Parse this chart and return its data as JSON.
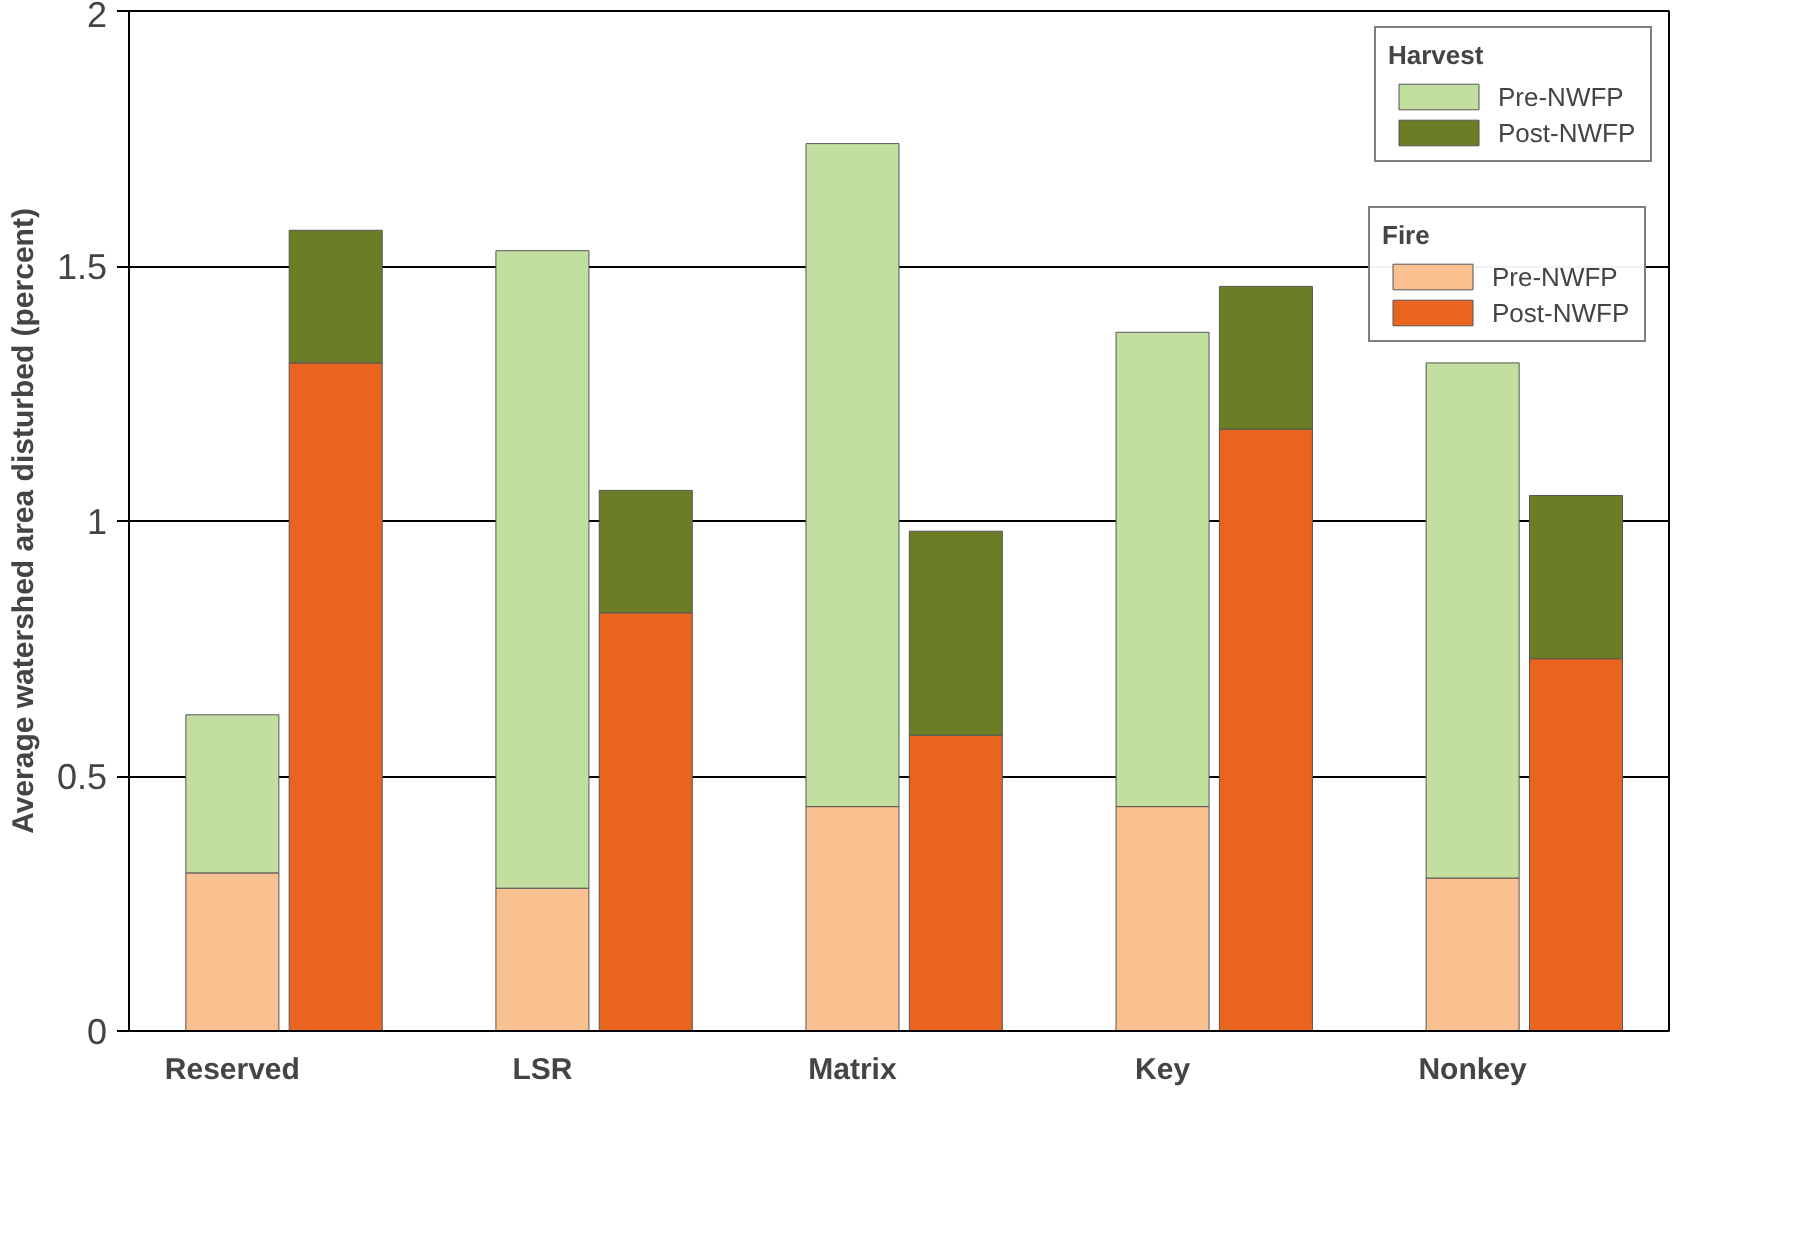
{
  "chart_data": {
    "type": "bar",
    "stacked": true,
    "ylabel": "Average watershed area disturbed (percent)",
    "categories": [
      "Reserved",
      null,
      null,
      "LSR",
      null,
      null,
      "Matrix",
      null,
      null,
      "Key",
      null,
      null,
      "Nonkey",
      null
    ],
    "series": [
      {
        "name": "Pre-NWFP",
        "color": "#f9c090",
        "values": [
          0.31,
          null,
          null,
          0.28,
          null,
          null,
          0.44,
          null,
          null,
          0.44,
          null,
          null,
          0.3,
          null
        ]
      },
      {
        "name": "Post-NWFP",
        "color": "#e8641f",
        "values": [
          null,
          1.31,
          null,
          null,
          0.82,
          null,
          null,
          0.58,
          null,
          null,
          1.18,
          null,
          null,
          0.73
        ]
      },
      {
        "name": "Pre-NWFP",
        "color": "#c3df9f",
        "values": [
          0.31,
          null,
          null,
          1.25,
          null,
          null,
          1.3,
          null,
          null,
          0.93,
          null,
          null,
          1.01,
          null
        ]
      },
      {
        "name": "Post-NWFP",
        "color": "#6b7e26",
        "values": [
          null,
          0.26,
          null,
          null,
          0.24,
          null,
          null,
          0.4,
          null,
          null,
          0.28,
          null,
          null,
          0.32
        ]
      }
    ],
    "annotations": [
      "Fire",
      "Harvest"
    ],
    "ylim": [
      0,
      2
    ],
    "yticks": [
      0,
      0.5,
      1,
      1.5,
      2
    ],
    "grid": "y",
    "legend": "top right"
  }
}
